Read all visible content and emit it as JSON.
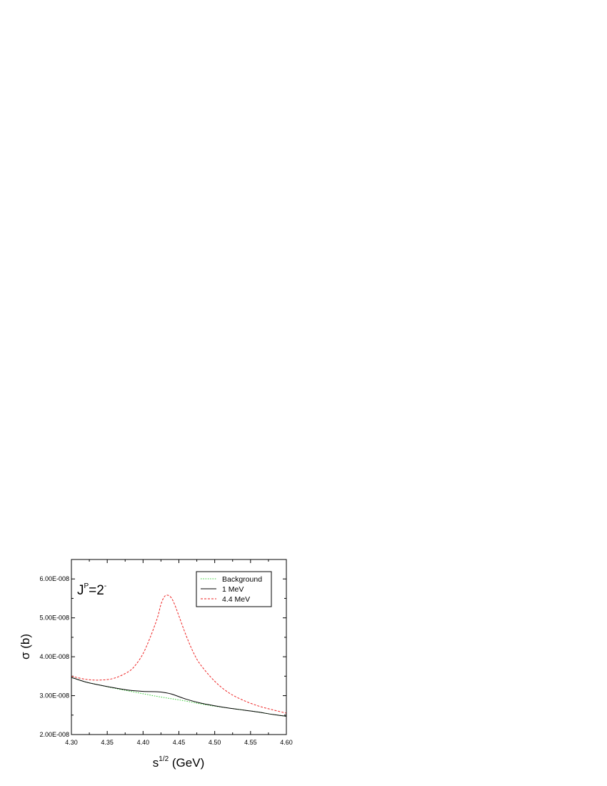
{
  "chart_data": {
    "type": "line",
    "xlabel_base": "s",
    "xlabel_sup": "1/2",
    "xlabel_rest": " (GeV)",
    "ylabel": "σ (b)",
    "annotation_base": "J",
    "annotation_sup1": "P",
    "annotation_mid": "=2",
    "annotation_sup2": "-",
    "xlim": [
      4.3,
      4.6
    ],
    "ylim": [
      2e-08,
      6.5e-08
    ],
    "x_ticks": [
      {
        "value": 4.3,
        "label": "4.30"
      },
      {
        "value": 4.35,
        "label": "4.35"
      },
      {
        "value": 4.4,
        "label": "4.40"
      },
      {
        "value": 4.45,
        "label": "4.45"
      },
      {
        "value": 4.5,
        "label": "4.50"
      },
      {
        "value": 4.55,
        "label": "4.55"
      },
      {
        "value": 4.6,
        "label": "4.60"
      }
    ],
    "y_ticks": [
      {
        "value": 2e-08,
        "label": "2.00E-008"
      },
      {
        "value": 3e-08,
        "label": "3.00E-008"
      },
      {
        "value": 4e-08,
        "label": "4.00E-008"
      },
      {
        "value": 5e-08,
        "label": "5.00E-008"
      },
      {
        "value": 6e-08,
        "label": "6.00E-008"
      }
    ],
    "legend_position": "top-right",
    "grid": false,
    "series": [
      {
        "name": "Background",
        "color": "#33cc33",
        "style": "dotted",
        "x": [
          4.3,
          4.32,
          4.34,
          4.36,
          4.38,
          4.4,
          4.42,
          4.44,
          4.46,
          4.48,
          4.5,
          4.52,
          4.54,
          4.56,
          4.58,
          4.6
        ],
        "y": [
          3.47e-08,
          3.35e-08,
          3.27e-08,
          3.19e-08,
          3.12e-08,
          3.05e-08,
          2.98e-08,
          2.92e-08,
          2.86e-08,
          2.79e-08,
          2.73e-08,
          2.68e-08,
          2.63e-08,
          2.58e-08,
          2.52e-08,
          2.47e-08
        ]
      },
      {
        "name": "1 MeV",
        "color": "#000000",
        "style": "solid",
        "x": [
          4.3,
          4.32,
          4.34,
          4.36,
          4.38,
          4.4,
          4.42,
          4.43,
          4.44,
          4.46,
          4.48,
          4.5,
          4.52,
          4.54,
          4.56,
          4.58,
          4.6
        ],
        "y": [
          3.47e-08,
          3.35e-08,
          3.27e-08,
          3.2e-08,
          3.14e-08,
          3.11e-08,
          3.1e-08,
          3.08e-08,
          3.04e-08,
          2.91e-08,
          2.81e-08,
          2.74e-08,
          2.68e-08,
          2.63e-08,
          2.58e-08,
          2.52e-08,
          2.47e-08
        ]
      },
      {
        "name": "4.4 MeV",
        "color": "#ee2222",
        "style": "dashed",
        "x": [
          4.3,
          4.32,
          4.34,
          4.36,
          4.38,
          4.39,
          4.4,
          4.41,
          4.42,
          4.425,
          4.43,
          4.435,
          4.44,
          4.445,
          4.45,
          4.46,
          4.47,
          4.48,
          4.5,
          4.52,
          4.54,
          4.56,
          4.58,
          4.6
        ],
        "y": [
          3.5e-08,
          3.42e-08,
          3.4e-08,
          3.45e-08,
          3.62e-08,
          3.8e-08,
          4.08e-08,
          4.5e-08,
          5e-08,
          5.35e-08,
          5.55e-08,
          5.58e-08,
          5.5e-08,
          5.3e-08,
          5.05e-08,
          4.55e-08,
          4.12e-08,
          3.8e-08,
          3.37e-08,
          3.07e-08,
          2.88e-08,
          2.74e-08,
          2.64e-08,
          2.55e-08
        ]
      }
    ]
  }
}
